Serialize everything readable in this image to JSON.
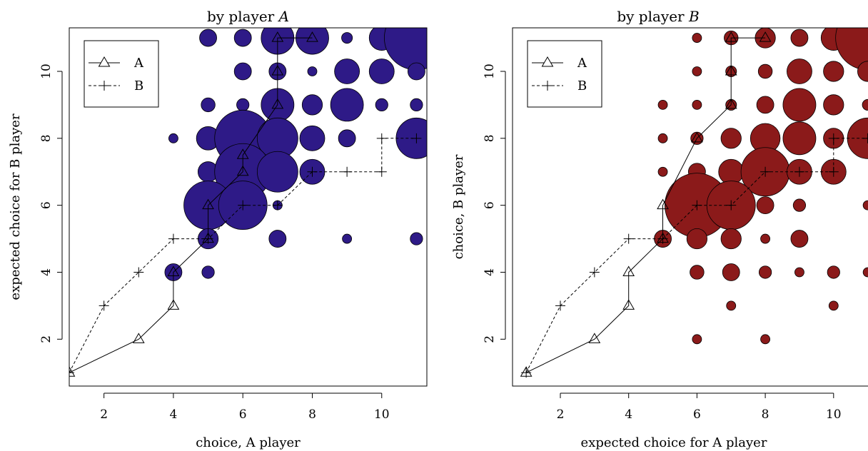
{
  "chart_data": [
    {
      "type": "scatter",
      "title_prefix": "by player ",
      "title_var": "A",
      "xlabel": "choice, A player",
      "ylabel": "expected choice for B player",
      "xlim": [
        1,
        11.3
      ],
      "ylim": [
        0.6,
        11.3
      ],
      "xticks": [
        2,
        4,
        6,
        8,
        10
      ],
      "yticks": [
        2,
        4,
        6,
        8,
        10
      ],
      "grid": false,
      "legend": {
        "position": "top-left",
        "entries": [
          "A",
          "B"
        ]
      },
      "bubble_color": "#2e1a87",
      "bubbles": [
        {
          "x": 5,
          "y": 11,
          "r": 1
        },
        {
          "x": 6,
          "y": 11,
          "r": 1
        },
        {
          "x": 7,
          "y": 11,
          "r": 2
        },
        {
          "x": 8,
          "y": 11,
          "r": 2
        },
        {
          "x": 9,
          "y": 11,
          "r": 0.6
        },
        {
          "x": 10,
          "y": 11,
          "r": 1.5
        },
        {
          "x": 11,
          "y": 11,
          "r": 4
        },
        {
          "x": 6,
          "y": 10,
          "r": 1
        },
        {
          "x": 7,
          "y": 10,
          "r": 1
        },
        {
          "x": 8,
          "y": 10,
          "r": 0.5
        },
        {
          "x": 9,
          "y": 10,
          "r": 1.5
        },
        {
          "x": 10,
          "y": 10,
          "r": 1.5
        },
        {
          "x": 11,
          "y": 10,
          "r": 1
        },
        {
          "x": 5,
          "y": 9,
          "r": 0.8
        },
        {
          "x": 6,
          "y": 9,
          "r": 0.7
        },
        {
          "x": 7,
          "y": 9,
          "r": 2
        },
        {
          "x": 8,
          "y": 9,
          "r": 1.2
        },
        {
          "x": 9,
          "y": 9,
          "r": 2
        },
        {
          "x": 10,
          "y": 9,
          "r": 0.7
        },
        {
          "x": 11,
          "y": 9,
          "r": 0.7
        },
        {
          "x": 4,
          "y": 8,
          "r": 0.5
        },
        {
          "x": 5,
          "y": 8,
          "r": 1.4
        },
        {
          "x": 6,
          "y": 8,
          "r": 3.5
        },
        {
          "x": 7,
          "y": 8,
          "r": 2.5
        },
        {
          "x": 8,
          "y": 8,
          "r": 1.5
        },
        {
          "x": 9,
          "y": 8,
          "r": 1
        },
        {
          "x": 11,
          "y": 8,
          "r": 2.5
        },
        {
          "x": 5,
          "y": 7,
          "r": 1.2
        },
        {
          "x": 6,
          "y": 7,
          "r": 3.5
        },
        {
          "x": 7,
          "y": 7,
          "r": 2.5
        },
        {
          "x": 8,
          "y": 7,
          "r": 1.5
        },
        {
          "x": 5,
          "y": 6,
          "r": 3
        },
        {
          "x": 6,
          "y": 6,
          "r": 3
        },
        {
          "x": 7,
          "y": 6,
          "r": 0.5
        },
        {
          "x": 5,
          "y": 5,
          "r": 1.2
        },
        {
          "x": 7,
          "y": 5,
          "r": 1
        },
        {
          "x": 9,
          "y": 5,
          "r": 0.5
        },
        {
          "x": 11,
          "y": 5,
          "r": 0.7
        },
        {
          "x": 4,
          "y": 4,
          "r": 1
        },
        {
          "x": 5,
          "y": 4,
          "r": 0.7
        }
      ],
      "series": [
        {
          "name": "A",
          "marker": "triangle",
          "dash": "solid",
          "points": [
            [
              1,
              1
            ],
            [
              3,
              2
            ],
            [
              4,
              3
            ],
            [
              4,
              4
            ],
            [
              5,
              5
            ],
            [
              5,
              6
            ],
            [
              6,
              7
            ],
            [
              6,
              7.5
            ],
            [
              7,
              9
            ],
            [
              7,
              10
            ],
            [
              7,
              11
            ],
            [
              8,
              11
            ]
          ]
        },
        {
          "name": "B",
          "marker": "plus",
          "dash": "dashed",
          "points": [
            [
              1,
              1
            ],
            [
              2,
              3
            ],
            [
              3,
              4
            ],
            [
              4,
              5
            ],
            [
              5,
              5
            ],
            [
              6,
              6
            ],
            [
              7,
              6
            ],
            [
              8,
              7
            ],
            [
              9,
              7
            ],
            [
              10,
              7
            ],
            [
              10,
              8
            ],
            [
              11,
              8
            ]
          ]
        }
      ]
    },
    {
      "type": "scatter",
      "title_prefix": "by player ",
      "title_var": "B",
      "xlabel": "expected choice for A player",
      "ylabel": "choice, B player",
      "xlim": [
        0.6,
        11.3
      ],
      "ylim": [
        0.6,
        11.3
      ],
      "xticks": [
        2,
        4,
        6,
        8,
        10
      ],
      "yticks": [
        2,
        4,
        6,
        8,
        10
      ],
      "grid": false,
      "legend": {
        "position": "top-left",
        "entries": [
          "A",
          "B"
        ]
      },
      "bubble_color": "#8b1a1a",
      "bubbles": [
        {
          "x": 6,
          "y": 11,
          "r": 0.5
        },
        {
          "x": 7,
          "y": 11,
          "r": 0.8
        },
        {
          "x": 8,
          "y": 11,
          "r": 1.2
        },
        {
          "x": 9,
          "y": 11,
          "r": 1
        },
        {
          "x": 10,
          "y": 11,
          "r": 1.5
        },
        {
          "x": 11,
          "y": 11,
          "r": 4
        },
        {
          "x": 6,
          "y": 10,
          "r": 0.5
        },
        {
          "x": 7,
          "y": 10,
          "r": 0.6
        },
        {
          "x": 8,
          "y": 10,
          "r": 0.8
        },
        {
          "x": 9,
          "y": 10,
          "r": 1.5
        },
        {
          "x": 10,
          "y": 10,
          "r": 1.2
        },
        {
          "x": 11,
          "y": 10,
          "r": 1.2
        },
        {
          "x": 5,
          "y": 9,
          "r": 0.5
        },
        {
          "x": 6,
          "y": 9,
          "r": 0.5
        },
        {
          "x": 7,
          "y": 9,
          "r": 0.6
        },
        {
          "x": 8,
          "y": 9,
          "r": 1
        },
        {
          "x": 9,
          "y": 9,
          "r": 2
        },
        {
          "x": 10,
          "y": 9,
          "r": 1.2
        },
        {
          "x": 11,
          "y": 9,
          "r": 0.6
        },
        {
          "x": 5,
          "y": 8,
          "r": 0.5
        },
        {
          "x": 6,
          "y": 8,
          "r": 0.7
        },
        {
          "x": 7,
          "y": 8,
          "r": 1.2
        },
        {
          "x": 8,
          "y": 8,
          "r": 1.8
        },
        {
          "x": 9,
          "y": 8,
          "r": 2
        },
        {
          "x": 10,
          "y": 8,
          "r": 1.2
        },
        {
          "x": 11,
          "y": 8,
          "r": 2.5
        },
        {
          "x": 5,
          "y": 7,
          "r": 0.5
        },
        {
          "x": 6,
          "y": 7,
          "r": 1
        },
        {
          "x": 7,
          "y": 7,
          "r": 1.5
        },
        {
          "x": 8,
          "y": 7,
          "r": 3
        },
        {
          "x": 9,
          "y": 7,
          "r": 1.5
        },
        {
          "x": 10,
          "y": 7,
          "r": 1.5
        },
        {
          "x": 6,
          "y": 6,
          "r": 4
        },
        {
          "x": 7,
          "y": 6,
          "r": 3
        },
        {
          "x": 8,
          "y": 6,
          "r": 1
        },
        {
          "x": 9,
          "y": 6,
          "r": 0.7
        },
        {
          "x": 11,
          "y": 6,
          "r": 0.5
        },
        {
          "x": 5,
          "y": 5,
          "r": 1
        },
        {
          "x": 6,
          "y": 5,
          "r": 1.2
        },
        {
          "x": 7,
          "y": 5,
          "r": 1.2
        },
        {
          "x": 8,
          "y": 5,
          "r": 0.5
        },
        {
          "x": 9,
          "y": 5,
          "r": 1
        },
        {
          "x": 6,
          "y": 4,
          "r": 0.8
        },
        {
          "x": 7,
          "y": 4,
          "r": 1
        },
        {
          "x": 8,
          "y": 4,
          "r": 0.7
        },
        {
          "x": 9,
          "y": 4,
          "r": 0.5
        },
        {
          "x": 10,
          "y": 4,
          "r": 0.7
        },
        {
          "x": 11,
          "y": 4,
          "r": 0.5
        },
        {
          "x": 7,
          "y": 3,
          "r": 0.5
        },
        {
          "x": 10,
          "y": 3,
          "r": 0.5
        },
        {
          "x": 6,
          "y": 2,
          "r": 0.5
        },
        {
          "x": 8,
          "y": 2,
          "r": 0.5
        }
      ],
      "series": [
        {
          "name": "A",
          "marker": "triangle",
          "dash": "solid",
          "points": [
            [
              1,
              1
            ],
            [
              3,
              2
            ],
            [
              4,
              3
            ],
            [
              4,
              4
            ],
            [
              5,
              5
            ],
            [
              5,
              6
            ],
            [
              6,
              8
            ],
            [
              7,
              9
            ],
            [
              7,
              10
            ],
            [
              7,
              11
            ],
            [
              8,
              11
            ]
          ]
        },
        {
          "name": "B",
          "marker": "plus",
          "dash": "dashed",
          "points": [
            [
              1,
              1
            ],
            [
              2,
              3
            ],
            [
              3,
              4
            ],
            [
              4,
              5
            ],
            [
              5,
              5
            ],
            [
              6,
              6
            ],
            [
              7,
              6
            ],
            [
              8,
              7
            ],
            [
              9,
              7
            ],
            [
              10,
              7
            ],
            [
              10,
              8
            ],
            [
              11,
              8
            ]
          ]
        }
      ]
    }
  ]
}
